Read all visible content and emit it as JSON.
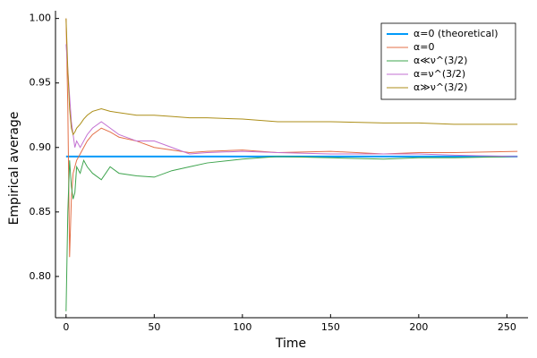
{
  "chart_data": {
    "type": "line",
    "xlabel": "Time",
    "ylabel": "Empirical average",
    "x": [
      0,
      1,
      2,
      3,
      4,
      5,
      6,
      8,
      10,
      12,
      15,
      20,
      25,
      30,
      40,
      50,
      60,
      70,
      80,
      100,
      120,
      150,
      180,
      200,
      220,
      256
    ],
    "series": [
      {
        "name": "α=0 (theoretical)",
        "color": "#009AFA",
        "width": 2,
        "values": [
          0.893,
          0.893,
          0.893,
          0.893,
          0.893,
          0.893,
          0.893,
          0.893,
          0.893,
          0.893,
          0.893,
          0.893,
          0.893,
          0.893,
          0.893,
          0.893,
          0.893,
          0.893,
          0.893,
          0.893,
          0.893,
          0.893,
          0.893,
          0.893,
          0.893,
          0.893
        ]
      },
      {
        "name": "α=0",
        "color": "#E36F47",
        "width": 1,
        "values": [
          1.0,
          0.93,
          0.815,
          0.86,
          0.88,
          0.885,
          0.89,
          0.895,
          0.9,
          0.905,
          0.91,
          0.915,
          0.912,
          0.908,
          0.905,
          0.9,
          0.898,
          0.896,
          0.897,
          0.898,
          0.896,
          0.897,
          0.895,
          0.896,
          0.896,
          0.897
        ]
      },
      {
        "name": "α≪ν^(3/2)",
        "color": "#3EA44E",
        "width": 1,
        "values": [
          0.773,
          0.85,
          0.89,
          0.87,
          0.86,
          0.865,
          0.885,
          0.88,
          0.89,
          0.885,
          0.88,
          0.875,
          0.885,
          0.88,
          0.878,
          0.877,
          0.882,
          0.885,
          0.888,
          0.891,
          0.893,
          0.892,
          0.891,
          0.892,
          0.892,
          0.893
        ]
      },
      {
        "name": "α=ν^(3/2)",
        "color": "#C371D2",
        "width": 1,
        "values": [
          0.98,
          0.96,
          0.94,
          0.92,
          0.91,
          0.9,
          0.905,
          0.9,
          0.905,
          0.91,
          0.915,
          0.92,
          0.915,
          0.91,
          0.905,
          0.905,
          0.9,
          0.895,
          0.896,
          0.897,
          0.896,
          0.895,
          0.895,
          0.895,
          0.894,
          0.893
        ]
      },
      {
        "name": "α≫ν^(3/2)",
        "color": "#AC8E18",
        "width": 1,
        "values": [
          1.0,
          0.96,
          0.93,
          0.915,
          0.91,
          0.912,
          0.915,
          0.918,
          0.922,
          0.925,
          0.928,
          0.93,
          0.928,
          0.927,
          0.925,
          0.925,
          0.924,
          0.923,
          0.923,
          0.922,
          0.92,
          0.92,
          0.919,
          0.919,
          0.918,
          0.918
        ]
      }
    ],
    "xlim": [
      -6,
      262
    ],
    "ylim": [
      0.768,
      1.006
    ],
    "xticks": [
      0,
      50,
      100,
      150,
      200,
      250
    ],
    "yticks": [
      {
        "value": 0.8,
        "label": "0.80"
      },
      0.85,
      {
        "value": 0.9,
        "label": "0.90"
      },
      0.95,
      {
        "value": 1.0,
        "label": "1.00"
      }
    ],
    "grid": false,
    "legend": "top-right"
  }
}
